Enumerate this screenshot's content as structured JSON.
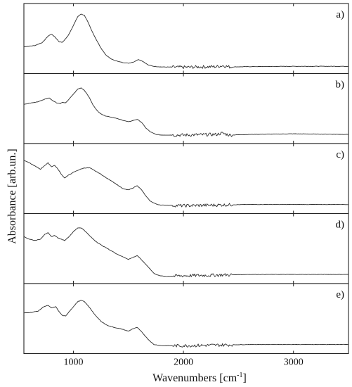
{
  "chart_data": {
    "type": "line",
    "xlabel": "Wavenumbers  [cm",
    "xlabel_sup": "-1",
    "xlabel_end": "]",
    "ylabel": "Absorbance [arb.un.]",
    "xlim": [
      550,
      3500
    ],
    "xticks": [
      1000,
      2000,
      3000
    ],
    "panels": [
      {
        "label": "a)",
        "ylim": [
          0,
          1
        ],
        "points": [
          [
            550,
            0.38
          ],
          [
            650,
            0.4
          ],
          [
            720,
            0.45
          ],
          [
            770,
            0.55
          ],
          [
            800,
            0.58
          ],
          [
            830,
            0.54
          ],
          [
            870,
            0.46
          ],
          [
            900,
            0.45
          ],
          [
            950,
            0.55
          ],
          [
            1000,
            0.72
          ],
          [
            1040,
            0.86
          ],
          [
            1070,
            0.9
          ],
          [
            1100,
            0.88
          ],
          [
            1130,
            0.78
          ],
          [
            1160,
            0.66
          ],
          [
            1200,
            0.52
          ],
          [
            1250,
            0.36
          ],
          [
            1300,
            0.24
          ],
          [
            1350,
            0.18
          ],
          [
            1400,
            0.15
          ],
          [
            1450,
            0.13
          ],
          [
            1500,
            0.12
          ],
          [
            1550,
            0.14
          ],
          [
            1590,
            0.18
          ],
          [
            1630,
            0.15
          ],
          [
            1680,
            0.09
          ],
          [
            1730,
            0.07
          ],
          [
            1800,
            0.06
          ],
          [
            2000,
            0.055
          ],
          [
            2300,
            0.065
          ],
          [
            2360,
            0.08
          ],
          [
            2420,
            0.06
          ],
          [
            2600,
            0.065
          ],
          [
            3000,
            0.07
          ],
          [
            3500,
            0.07
          ]
        ]
      },
      {
        "label": "b)",
        "ylim": [
          0,
          1
        ],
        "points": [
          [
            550,
            0.58
          ],
          [
            620,
            0.6
          ],
          [
            680,
            0.62
          ],
          [
            740,
            0.66
          ],
          [
            780,
            0.68
          ],
          [
            810,
            0.64
          ],
          [
            850,
            0.6
          ],
          [
            880,
            0.59
          ],
          [
            900,
            0.61
          ],
          [
            930,
            0.6
          ],
          [
            960,
            0.66
          ],
          [
            1000,
            0.74
          ],
          [
            1040,
            0.82
          ],
          [
            1070,
            0.84
          ],
          [
            1100,
            0.8
          ],
          [
            1140,
            0.7
          ],
          [
            1180,
            0.56
          ],
          [
            1230,
            0.45
          ],
          [
            1280,
            0.4
          ],
          [
            1330,
            0.38
          ],
          [
            1380,
            0.36
          ],
          [
            1420,
            0.34
          ],
          [
            1460,
            0.32
          ],
          [
            1500,
            0.3
          ],
          [
            1540,
            0.32
          ],
          [
            1580,
            0.34
          ],
          [
            1620,
            0.29
          ],
          [
            1660,
            0.2
          ],
          [
            1700,
            0.14
          ],
          [
            1750,
            0.1
          ],
          [
            1800,
            0.09
          ],
          [
            2000,
            0.09
          ],
          [
            2300,
            0.1
          ],
          [
            2350,
            0.12
          ],
          [
            2420,
            0.09
          ],
          [
            2600,
            0.1
          ],
          [
            3000,
            0.11
          ],
          [
            3500,
            0.1
          ]
        ]
      },
      {
        "label": "c)",
        "ylim": [
          0,
          1
        ],
        "points": [
          [
            550,
            0.8
          ],
          [
            600,
            0.76
          ],
          [
            650,
            0.71
          ],
          [
            700,
            0.66
          ],
          [
            740,
            0.72
          ],
          [
            770,
            0.76
          ],
          [
            800,
            0.7
          ],
          [
            830,
            0.72
          ],
          [
            860,
            0.66
          ],
          [
            890,
            0.58
          ],
          [
            920,
            0.52
          ],
          [
            960,
            0.57
          ],
          [
            1000,
            0.61
          ],
          [
            1050,
            0.65
          ],
          [
            1100,
            0.68
          ],
          [
            1150,
            0.68
          ],
          [
            1200,
            0.63
          ],
          [
            1250,
            0.58
          ],
          [
            1300,
            0.52
          ],
          [
            1350,
            0.47
          ],
          [
            1400,
            0.41
          ],
          [
            1450,
            0.35
          ],
          [
            1500,
            0.33
          ],
          [
            1540,
            0.36
          ],
          [
            1580,
            0.4
          ],
          [
            1620,
            0.33
          ],
          [
            1660,
            0.23
          ],
          [
            1700,
            0.15
          ],
          [
            1760,
            0.1
          ],
          [
            1800,
            0.09
          ],
          [
            2000,
            0.08
          ],
          [
            2300,
            0.09
          ],
          [
            2600,
            0.1
          ],
          [
            3000,
            0.1
          ],
          [
            3500,
            0.1
          ]
        ]
      },
      {
        "label": "d)",
        "ylim": [
          0,
          1
        ],
        "points": [
          [
            550,
            0.7
          ],
          [
            600,
            0.66
          ],
          [
            650,
            0.64
          ],
          [
            700,
            0.66
          ],
          [
            740,
            0.74
          ],
          [
            770,
            0.76
          ],
          [
            800,
            0.7
          ],
          [
            830,
            0.72
          ],
          [
            860,
            0.68
          ],
          [
            890,
            0.66
          ],
          [
            920,
            0.64
          ],
          [
            960,
            0.7
          ],
          [
            1000,
            0.78
          ],
          [
            1040,
            0.84
          ],
          [
            1070,
            0.84
          ],
          [
            1100,
            0.8
          ],
          [
            1150,
            0.71
          ],
          [
            1200,
            0.63
          ],
          [
            1250,
            0.57
          ],
          [
            1300,
            0.52
          ],
          [
            1350,
            0.47
          ],
          [
            1400,
            0.42
          ],
          [
            1450,
            0.38
          ],
          [
            1500,
            0.34
          ],
          [
            1540,
            0.37
          ],
          [
            1580,
            0.4
          ],
          [
            1620,
            0.33
          ],
          [
            1680,
            0.22
          ],
          [
            1730,
            0.12
          ],
          [
            1780,
            0.08
          ],
          [
            1850,
            0.07
          ],
          [
            2000,
            0.08
          ],
          [
            2300,
            0.09
          ],
          [
            2600,
            0.1
          ],
          [
            3000,
            0.1
          ],
          [
            3500,
            0.1
          ]
        ]
      },
      {
        "label": "e)",
        "ylim": [
          0,
          1
        ],
        "points": [
          [
            550,
            0.6
          ],
          [
            620,
            0.61
          ],
          [
            680,
            0.63
          ],
          [
            730,
            0.7
          ],
          [
            770,
            0.72
          ],
          [
            800,
            0.68
          ],
          [
            840,
            0.7
          ],
          [
            870,
            0.62
          ],
          [
            900,
            0.56
          ],
          [
            930,
            0.55
          ],
          [
            960,
            0.62
          ],
          [
            1000,
            0.7
          ],
          [
            1040,
            0.78
          ],
          [
            1070,
            0.8
          ],
          [
            1100,
            0.78
          ],
          [
            1150,
            0.68
          ],
          [
            1200,
            0.56
          ],
          [
            1250,
            0.47
          ],
          [
            1300,
            0.41
          ],
          [
            1350,
            0.38
          ],
          [
            1400,
            0.36
          ],
          [
            1450,
            0.34
          ],
          [
            1500,
            0.31
          ],
          [
            1540,
            0.35
          ],
          [
            1580,
            0.37
          ],
          [
            1620,
            0.3
          ],
          [
            1680,
            0.18
          ],
          [
            1730,
            0.1
          ],
          [
            1800,
            0.08
          ],
          [
            2000,
            0.08
          ],
          [
            2300,
            0.09
          ],
          [
            2600,
            0.1
          ],
          [
            3000,
            0.1
          ],
          [
            3500,
            0.1
          ]
        ]
      }
    ]
  }
}
